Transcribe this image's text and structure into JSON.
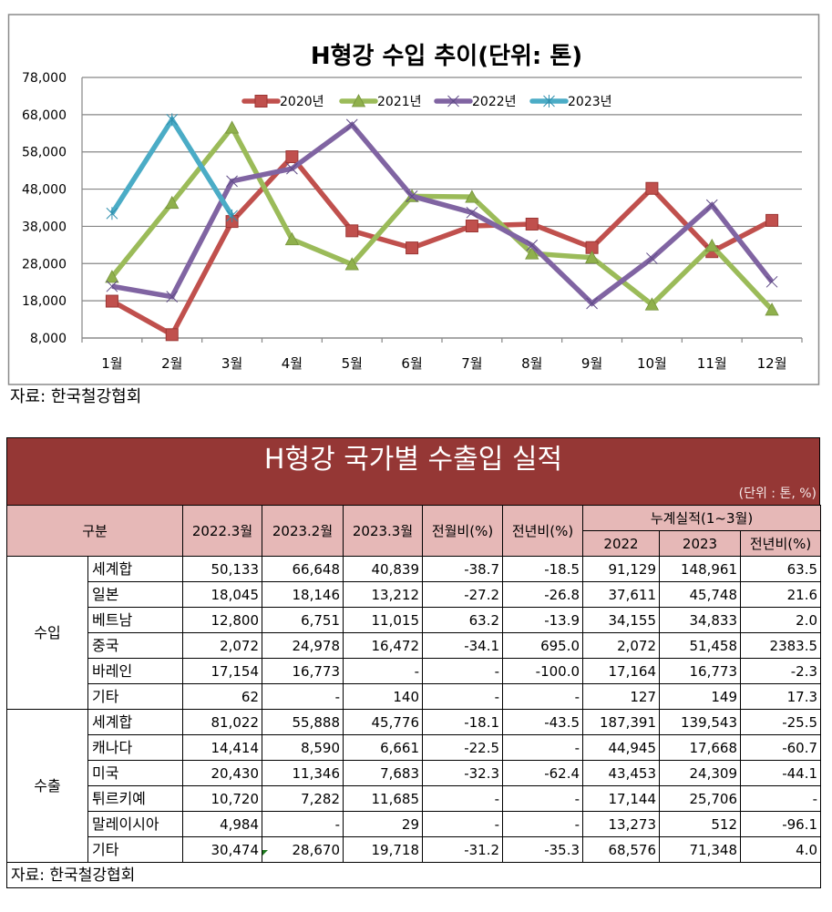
{
  "chart_data": {
    "type": "line",
    "title": "H형강 수입 추이(단위: 톤)",
    "categories": [
      "1월",
      "2월",
      "3월",
      "4월",
      "5월",
      "6월",
      "7월",
      "8월",
      "9월",
      "10월",
      "11월",
      "12월"
    ],
    "ylim": [
      8000,
      78000
    ],
    "yticks": [
      8000,
      18000,
      28000,
      38000,
      48000,
      58000,
      68000,
      78000
    ],
    "ytick_labels": [
      "8,000",
      "18,000",
      "28,000",
      "38,000",
      "48,000",
      "58,000",
      "68,000",
      "78,000"
    ],
    "grid": true,
    "legend": "top",
    "series": [
      {
        "name": "2020년",
        "color": "#C0504D",
        "marker": "square-marker",
        "values": [
          17900,
          8900,
          39300,
          56700,
          36800,
          32200,
          38100,
          38600,
          32300,
          48200,
          31200,
          39600
        ]
      },
      {
        "name": "2021년",
        "color": "#9BBB59",
        "marker": "triangle-marker",
        "values": [
          24400,
          44300,
          64500,
          34500,
          27800,
          46100,
          45900,
          30700,
          29600,
          17000,
          32800,
          15600
        ]
      },
      {
        "name": "2022년",
        "color": "#8064A2",
        "marker": "x-marker",
        "values": [
          21900,
          19100,
          50133,
          53500,
          65300,
          46100,
          41700,
          32900,
          17300,
          29400,
          43700,
          23100
        ]
      },
      {
        "name": "2023년",
        "color": "#4BACC6",
        "marker": "star-marker",
        "values": [
          41474,
          66648,
          40839,
          null,
          null,
          null,
          null,
          null,
          null,
          null,
          null,
          null
        ]
      }
    ]
  },
  "chart_source": "자료: 한국철강협회",
  "table": {
    "title": "H형강 국가별 수출입 실적",
    "unit": "(단위 : 톤, %)",
    "header": {
      "category": "구분",
      "col_2022_3": "2022.3월",
      "col_2023_2": "2023.2월",
      "col_2023_3": "2023.3월",
      "mom": "전월비(%)",
      "yoy": "전년비(%)",
      "cumulative": "누계실적(1~3월)",
      "cum_2022": "2022",
      "cum_2023": "2023",
      "cum_yoy": "전년비(%)"
    },
    "groups": [
      {
        "label": "수입",
        "rows": [
          {
            "name": "세계합",
            "values": [
              "50,133",
              "66,648",
              "40,839",
              "-38.7",
              "-18.5",
              "91,129",
              "148,961",
              "63.5"
            ]
          },
          {
            "name": "일본",
            "values": [
              "18,045",
              "18,146",
              "13,212",
              "-27.2",
              "-26.8",
              "37,611",
              "45,748",
              "21.6"
            ]
          },
          {
            "name": "베트남",
            "values": [
              "12,800",
              "6,751",
              "11,015",
              "63.2",
              "-13.9",
              "34,155",
              "34,833",
              "2.0"
            ]
          },
          {
            "name": "중국",
            "values": [
              "2,072",
              "24,978",
              "16,472",
              "-34.1",
              "695.0",
              "2,072",
              "51,458",
              "2383.5"
            ]
          },
          {
            "name": "바레인",
            "values": [
              "17,154",
              "16,773",
              "-",
              "-",
              "-100.0",
              "17,164",
              "16,773",
              "-2.3"
            ]
          },
          {
            "name": "기타",
            "values": [
              "62",
              "-",
              "140",
              "-",
              "-",
              "127",
              "149",
              "17.3"
            ]
          }
        ]
      },
      {
        "label": "수출",
        "rows": [
          {
            "name": "세계합",
            "values": [
              "81,022",
              "55,888",
              "45,776",
              "-18.1",
              "-43.5",
              "187,391",
              "139,543",
              "-25.5"
            ]
          },
          {
            "name": "캐나다",
            "values": [
              "14,414",
              "8,590",
              "6,661",
              "-22.5",
              "-",
              "44,945",
              "17,668",
              "-60.7"
            ]
          },
          {
            "name": "미국",
            "values": [
              "20,430",
              "11,346",
              "7,683",
              "-32.3",
              "-62.4",
              "43,453",
              "24,309",
              "-44.1"
            ]
          },
          {
            "name": "튀르키예",
            "values": [
              "10,720",
              "7,282",
              "11,685",
              "-",
              "-",
              "17,144",
              "25,706",
              "-"
            ]
          },
          {
            "name": "말레이시아",
            "values": [
              "4,984",
              "-",
              "29",
              "-",
              "-",
              "13,273",
              "512",
              "-96.1"
            ]
          },
          {
            "name": "기타",
            "values": [
              "30,474",
              "28,670",
              "19,718",
              "-31.2",
              "-35.3",
              "68,576",
              "71,348",
              "4.0"
            ]
          }
        ]
      }
    ],
    "source": "자료: 한국철강협회"
  },
  "colors": {
    "title_band": "#953735",
    "header_fill": "#E6B8B7",
    "grid": "#868686",
    "frame": "#8A8A8A",
    "comment_indicator": "#1F7A1F"
  }
}
